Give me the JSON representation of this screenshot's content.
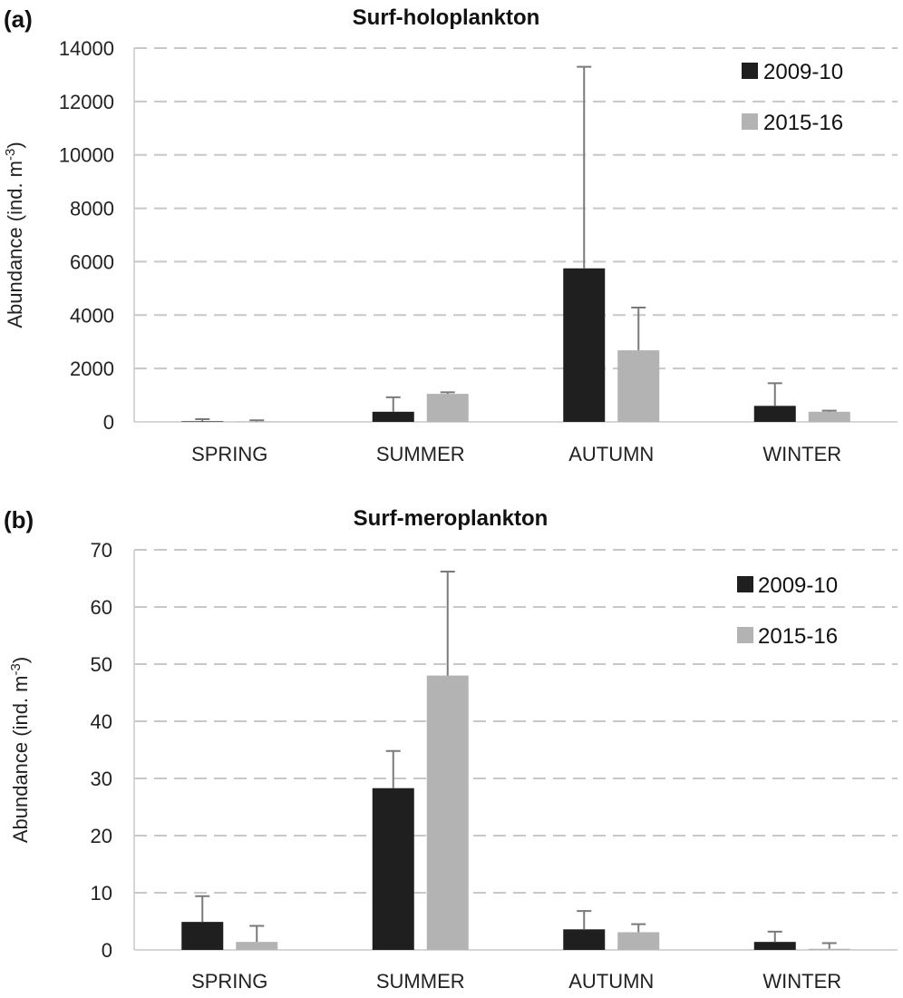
{
  "chart_data": [
    {
      "panel": "(a)",
      "type": "bar",
      "title": "Surf-holoplankton",
      "ylabel": "Abundance (ind. m",
      "ylabel_sup": "-3",
      "ylabel_end": ")",
      "ylim": [
        0,
        14000
      ],
      "yticks": [
        0,
        2000,
        4000,
        6000,
        8000,
        10000,
        12000,
        14000
      ],
      "grid": true,
      "legend_position": "top-right",
      "categories": [
        "SPRING",
        "SUMMER",
        "AUTUMN",
        "WINTER"
      ],
      "series": [
        {
          "name": "2009-10",
          "color": "#1f1f1f",
          "values": [
            20,
            380,
            5750,
            600
          ],
          "error": [
            80,
            540,
            7550,
            850
          ]
        },
        {
          "name": "2015-16",
          "color": "#b3b3b3",
          "values": [
            10,
            1050,
            2680,
            380
          ],
          "error": [
            50,
            60,
            1600,
            40
          ]
        }
      ]
    },
    {
      "panel": "(b)",
      "type": "bar",
      "title": "Surf-meroplankton",
      "ylabel": "Abundance (ind. m",
      "ylabel_sup": "-3",
      "ylabel_end": ")",
      "ylim": [
        0,
        70
      ],
      "yticks": [
        0,
        10,
        20,
        30,
        40,
        50,
        60,
        70
      ],
      "grid": true,
      "legend_position": "top-right",
      "categories": [
        "SPRING",
        "SUMMER",
        "AUTUMN",
        "WINTER"
      ],
      "series": [
        {
          "name": "2009-10",
          "color": "#1f1f1f",
          "values": [
            4.9,
            28.3,
            3.6,
            1.4
          ],
          "error": [
            4.5,
            6.5,
            3.2,
            1.8
          ]
        },
        {
          "name": "2015-16",
          "color": "#b3b3b3",
          "values": [
            1.4,
            48.0,
            3.1,
            0.2
          ],
          "error": [
            2.8,
            18.2,
            1.4,
            1.0
          ]
        }
      ]
    }
  ]
}
